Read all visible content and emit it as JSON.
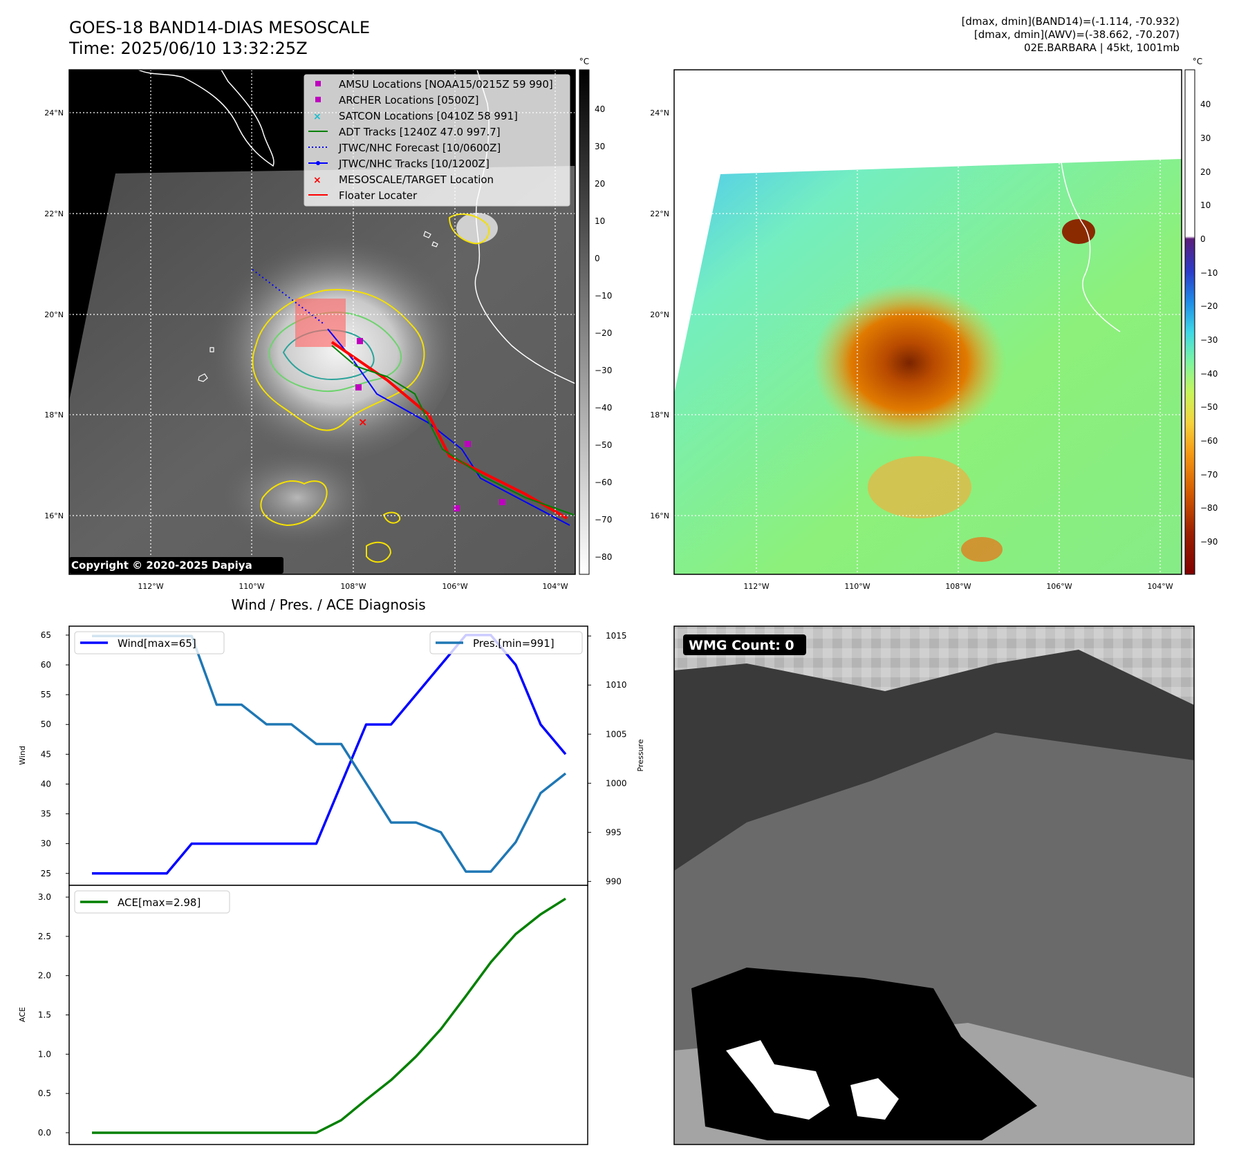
{
  "header": {
    "title_line1": "GOES-18 BAND14-DIAS MESOSCALE",
    "title_line2": "Time: 2025/06/10 13:32:25Z",
    "info_line1": "[dmax, dmin](BAND14)=(-1.114, -70.932)",
    "info_line2": "[dmax, dmin](AWV)=(-38.662, -70.207)",
    "info_line3": "02E.BARBARA | 45kt, 1001mb"
  },
  "map_left": {
    "lon_ticks": [
      "112°W",
      "110°W",
      "108°W",
      "106°W",
      "104°W"
    ],
    "lat_ticks": [
      "24°N",
      "22°N",
      "20°N",
      "18°N",
      "16°N"
    ],
    "copyright": "Copyright © 2020-2025 Dapiya",
    "colorbar_unit": "°C",
    "colorbar_ticks": [
      "40",
      "30",
      "20",
      "10",
      "0",
      "−10",
      "−20",
      "−30",
      "−40",
      "−50",
      "−60",
      "−70",
      "−80"
    ],
    "legend": [
      {
        "label": "AMSU Locations [NOAA15/0215Z 59 990]",
        "marker": "square",
        "color": "#bf00bf"
      },
      {
        "label": "ARCHER Locations [0500Z]",
        "marker": "square",
        "color": "#bf00bf"
      },
      {
        "label": "SATCON Locations [0410Z 58 991]",
        "marker": "x",
        "color": "#17becf"
      },
      {
        "label": "ADT Tracks [1240Z 47.0 997.7]",
        "marker": "line",
        "color": "#008000"
      },
      {
        "label": "JTWC/NHC Forecast [10/0600Z]",
        "marker": "dotted",
        "color": "#0000ff"
      },
      {
        "label": "JTWC/NHC Tracks [10/1200Z]",
        "marker": "line-dot",
        "color": "#0000ff"
      },
      {
        "label": "MESOSCALE/TARGET Location",
        "marker": "x",
        "color": "#ff0000"
      },
      {
        "label": "Floater Locater",
        "marker": "line",
        "color": "#ff0000"
      }
    ]
  },
  "map_right": {
    "lon_ticks": [
      "112°W",
      "110°W",
      "108°W",
      "106°W",
      "104°W"
    ],
    "lat_ticks": [
      "24°N",
      "22°N",
      "20°N",
      "18°N",
      "16°N"
    ],
    "colorbar_unit": "°C",
    "colorbar_ticks": [
      "40",
      "30",
      "20",
      "10",
      "0",
      "−10",
      "−20",
      "−30",
      "−40",
      "−50",
      "−60",
      "−70",
      "−80",
      "−90"
    ]
  },
  "panel_wmg": {
    "badge": "WMG Count: 0"
  },
  "chart_data": [
    {
      "type": "line",
      "title": "Wind / Pres. / ACE Diagnosis",
      "ylabel": "Wind",
      "ylabel_right": "Pressure",
      "ylim": [
        23.0,
        66.5
      ],
      "ylim_right": [
        989.6,
        1016.0
      ],
      "yticks": [
        25,
        30,
        35,
        40,
        45,
        50,
        55,
        60,
        65
      ],
      "yticks_right": [
        990,
        995,
        1000,
        1005,
        1010,
        1015
      ],
      "x": [
        0,
        1,
        2,
        3,
        4,
        5,
        6,
        7,
        8,
        9,
        10,
        11,
        12,
        13,
        14,
        15,
        16,
        17,
        18,
        19
      ],
      "series": [
        {
          "name": "Wind[max=65]",
          "axis": "left",
          "color": "#0000ff",
          "values": [
            25,
            25,
            25,
            25,
            30,
            30,
            30,
            30,
            30,
            30,
            40,
            50,
            50,
            55,
            60,
            65,
            65,
            60,
            50,
            45
          ]
        },
        {
          "name": "Pres.[min=991]",
          "axis": "right",
          "color": "#1f77b4",
          "values": [
            1015,
            1015,
            1015,
            1015,
            1015,
            1008,
            1008,
            1006,
            1006,
            1004,
            1004,
            1000,
            996,
            996,
            995,
            991,
            991,
            994,
            999,
            1001
          ]
        }
      ],
      "legend": [
        "upper-left",
        "upper-right"
      ]
    },
    {
      "type": "line",
      "ylabel": "ACE",
      "ylim": [
        -0.15,
        3.15
      ],
      "yticks": [
        0.0,
        0.5,
        1.0,
        1.5,
        2.0,
        2.5,
        3.0
      ],
      "x": [
        0,
        1,
        2,
        3,
        4,
        5,
        6,
        7,
        8,
        9,
        10,
        11,
        12,
        13,
        14,
        15,
        16,
        17,
        18,
        19
      ],
      "series": [
        {
          "name": "ACE[max=2.98]",
          "color": "#008000",
          "values": [
            0,
            0,
            0,
            0,
            0,
            0,
            0,
            0,
            0,
            0,
            0.16,
            0.42,
            0.67,
            0.97,
            1.32,
            1.74,
            2.17,
            2.53,
            2.78,
            2.98
          ]
        }
      ],
      "legend": "upper-left"
    }
  ]
}
